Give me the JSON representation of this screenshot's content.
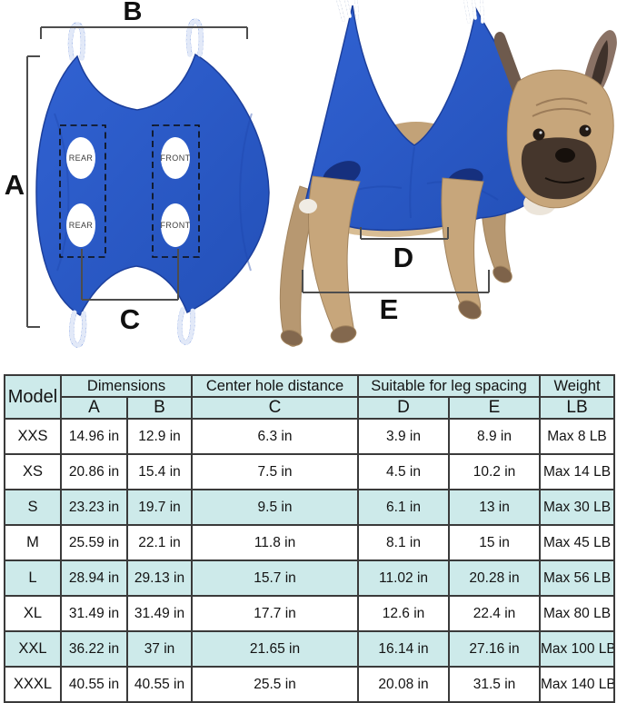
{
  "diagram": {
    "measurement_labels": {
      "a": "A",
      "b": "B",
      "c": "C",
      "d": "D",
      "e": "E"
    },
    "hole_labels": {
      "rear": "REAR",
      "front": "FRONT"
    },
    "colors": {
      "fabric_blue": "#2a5cc8",
      "fabric_dark": "#1c3f9c",
      "dog_fawn": "#c7a67b",
      "measure_line": "#4d4d4d",
      "table_header_bg": "#cdeaea",
      "table_border": "#3a3a3a"
    }
  },
  "table": {
    "header": {
      "model": "Model",
      "dimensions": "Dimensions",
      "center_hole_distance": "Center hole distance",
      "leg_spacing": "Suitable for leg spacing",
      "weight": "Weight",
      "columns": [
        "A",
        "B",
        "C",
        "D",
        "E",
        "LB"
      ]
    },
    "rows": [
      {
        "shaded": false,
        "cells": [
          "XXS",
          "14.96 in",
          "12.9 in",
          "6.3 in",
          "3.9 in",
          "8.9 in",
          "Max 8 LB"
        ]
      },
      {
        "shaded": false,
        "cells": [
          "XS",
          "20.86 in",
          "15.4 in",
          "7.5 in",
          "4.5 in",
          "10.2 in",
          "Max 14 LB"
        ]
      },
      {
        "shaded": true,
        "cells": [
          "S",
          "23.23 in",
          "19.7 in",
          "9.5 in",
          "6.1 in",
          "13 in",
          "Max 30 LB"
        ]
      },
      {
        "shaded": false,
        "cells": [
          "M",
          "25.59 in",
          "22.1 in",
          "11.8 in",
          "8.1 in",
          "15 in",
          "Max 45 LB"
        ]
      },
      {
        "shaded": true,
        "cells": [
          "L",
          "28.94 in",
          "29.13 in",
          "15.7 in",
          "11.02 in",
          "20.28 in",
          "Max 56 LB"
        ]
      },
      {
        "shaded": false,
        "cells": [
          "XL",
          "31.49 in",
          "31.49 in",
          "17.7 in",
          "12.6 in",
          "22.4 in",
          "Max 80 LB"
        ]
      },
      {
        "shaded": true,
        "cells": [
          "XXL",
          "36.22 in",
          "37 in",
          "21.65 in",
          "16.14 in",
          "27.16 in",
          "Max 100 LB"
        ]
      },
      {
        "shaded": false,
        "cells": [
          "XXXL",
          "40.55 in",
          "40.55 in",
          "25.5 in",
          "20.08 in",
          "31.5 in",
          "Max 140 LB"
        ]
      }
    ]
  }
}
